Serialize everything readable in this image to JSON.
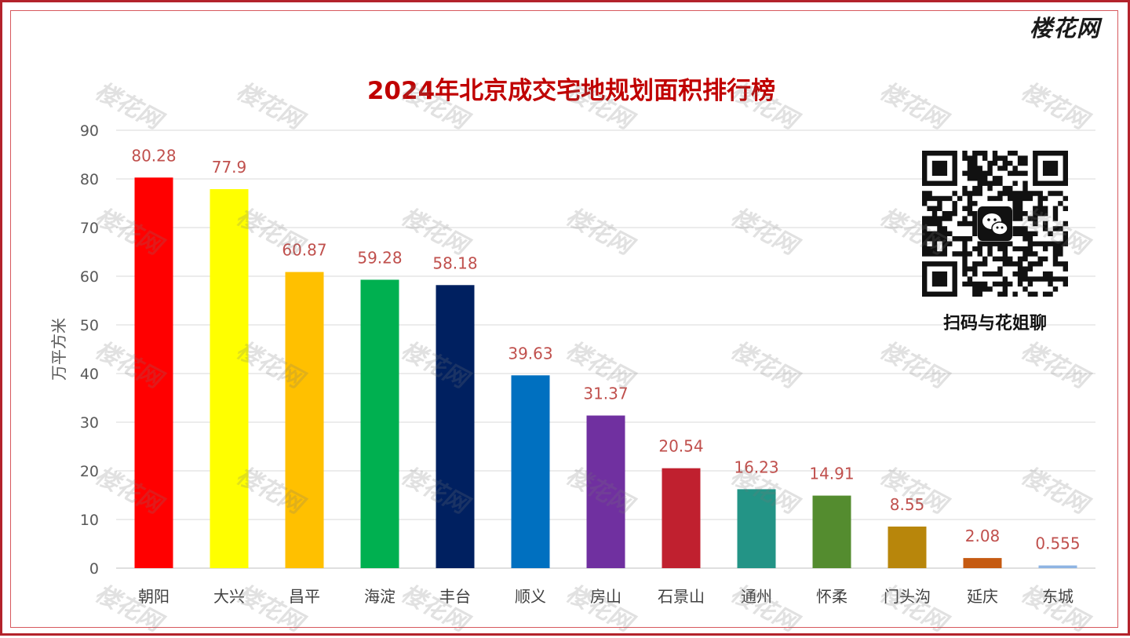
{
  "brand": {
    "logo_text": "楼花网",
    "watermark_text": "楼花网"
  },
  "qr": {
    "caption": "扫码与花姐聊",
    "icon": "wechat-icon"
  },
  "colors": {
    "frame": "#b3232b",
    "title": "#c00000",
    "data_label": "#c0504d"
  },
  "chart_data": {
    "type": "bar",
    "title": "2024年北京成交宅地规划面积排行榜",
    "xlabel": "",
    "ylabel": "万平方米",
    "ylim": [
      0,
      90
    ],
    "yticks": [
      0,
      10,
      20,
      30,
      40,
      50,
      60,
      70,
      80,
      90
    ],
    "grid": true,
    "legend": "none",
    "categories": [
      "朝阳",
      "大兴",
      "昌平",
      "海淀",
      "丰台",
      "顺义",
      "房山",
      "石景山",
      "通州",
      "怀柔",
      "门头沟",
      "延庆",
      "东城"
    ],
    "values": [
      80.28,
      77.9,
      60.87,
      59.28,
      58.18,
      39.63,
      31.37,
      20.54,
      16.23,
      14.91,
      8.55,
      2.08,
      0.555
    ],
    "labels": [
      "80.28",
      "77.9",
      "60.87",
      "59.28",
      "58.18",
      "39.63",
      "31.37",
      "20.54",
      "16.23",
      "14.91",
      "8.55",
      "2.08",
      "0.555"
    ],
    "bar_colors": [
      "#ff0000",
      "#ffff00",
      "#ffc000",
      "#00b050",
      "#002060",
      "#0070c0",
      "#7030a0",
      "#c0202f",
      "#239486",
      "#548c2f",
      "#b8860b",
      "#c55a11",
      "#8eb4e3"
    ]
  }
}
